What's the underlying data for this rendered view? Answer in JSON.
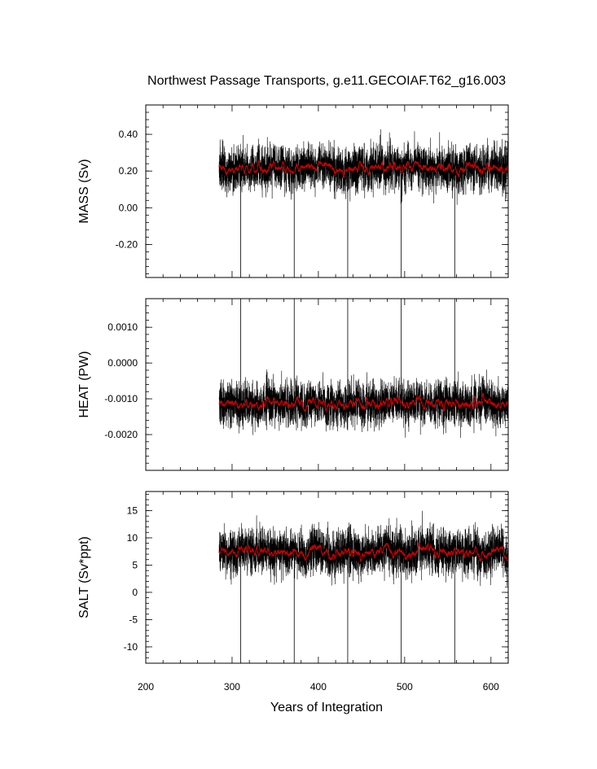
{
  "title": "Northwest Passage Transports, g.e11.GECOIAF.T62_g16.003",
  "xlabel": "Years of Integration",
  "chart_data": [
    {
      "type": "line",
      "name": "mass",
      "ylabel": "MASS (Sv)",
      "xlim": [
        200,
        620
      ],
      "ylim": [
        -0.38,
        0.56
      ],
      "yticks": [
        -0.2,
        0.0,
        0.2,
        0.4
      ],
      "ytick_labels": [
        "-0.20",
        "0.00",
        "0.20",
        "0.40"
      ],
      "x_start": 285,
      "x_end": 620,
      "mean": 0.22,
      "spread": 0.085,
      "spike_years": [
        310,
        372,
        434,
        496,
        558
      ],
      "spike_value": -0.38,
      "series": [
        {
          "name": "",
          "color": "#000000",
          "kind": "monthly"
        },
        {
          "name": "",
          "color": "#cc0000",
          "kind": "annual"
        }
      ]
    },
    {
      "type": "line",
      "name": "heat",
      "ylabel": "HEAT (PW)",
      "xlim": [
        200,
        620
      ],
      "ylim": [
        -0.003,
        0.0018
      ],
      "yticks": [
        -0.002,
        -0.001,
        0.0,
        0.001
      ],
      "ytick_labels": [
        "-0.0020",
        "-0.0010",
        "0.0000",
        "0.0010"
      ],
      "x_start": 285,
      "x_end": 620,
      "mean": -0.00115,
      "spread": 0.00042,
      "spike_years": [
        310,
        372,
        434,
        496,
        558
      ],
      "spike_value": 0.0018,
      "series": [
        {
          "name": "",
          "color": "#000000",
          "kind": "monthly"
        },
        {
          "name": "",
          "color": "#cc0000",
          "kind": "annual"
        }
      ]
    },
    {
      "type": "line",
      "name": "salt",
      "ylabel": "SALT (Sv*ppt)",
      "xlim": [
        200,
        620
      ],
      "ylim": [
        -13,
        18.5
      ],
      "yticks": [
        -10,
        -5,
        0,
        5,
        10,
        15
      ],
      "ytick_labels": [
        "-10",
        "-5",
        "0",
        "5",
        "10",
        "15"
      ],
      "x_start": 285,
      "x_end": 620,
      "mean": 7.3,
      "spread": 2.9,
      "spike_years": [
        310,
        372,
        434,
        496,
        558
      ],
      "spike_value": -13,
      "series": [
        {
          "name": "",
          "color": "#000000",
          "kind": "monthly"
        },
        {
          "name": "",
          "color": "#cc0000",
          "kind": "annual"
        }
      ]
    }
  ],
  "xticks": [
    200,
    300,
    400,
    500,
    600
  ],
  "xtick_labels": [
    "200",
    "300",
    "400",
    "500",
    "600"
  ]
}
